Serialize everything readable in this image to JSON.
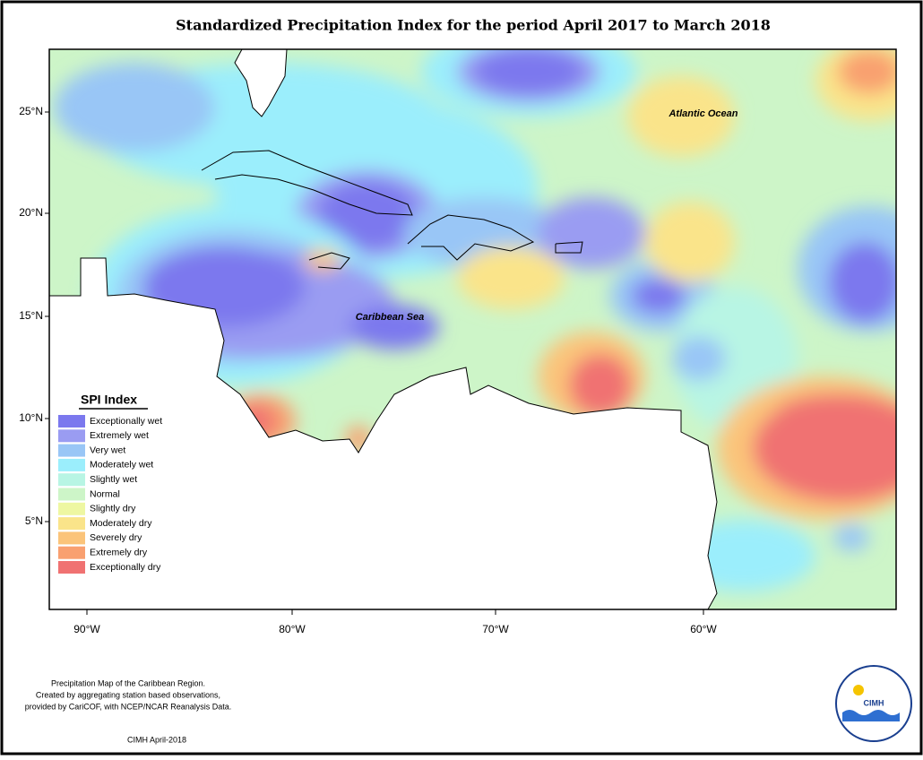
{
  "title": "Standardized Precipitation Index for the period April 2017 to March 2018",
  "map": {
    "lat_ticks": [
      "25°N",
      "20°N",
      "15°N",
      "10°N",
      "5°N"
    ],
    "lon_ticks": [
      "90°W",
      "80°W",
      "70°W",
      "60°W"
    ],
    "labels": [
      "Atlantic Ocean",
      "Caribbean Sea"
    ]
  },
  "legend": {
    "title": "SPI Index",
    "items": [
      {
        "label": "Exceptionally wet",
        "color": "#7b78ee"
      },
      {
        "label": "Extremely wet",
        "color": "#9a9cf2"
      },
      {
        "label": "Very wet",
        "color": "#99c6f6"
      },
      {
        "label": "Moderately wet",
        "color": "#9beefc"
      },
      {
        "label": "Slightly wet",
        "color": "#b8f5e4"
      },
      {
        "label": "Normal",
        "color": "#cdf5c8"
      },
      {
        "label": "Slightly dry",
        "color": "#eef7a2"
      },
      {
        "label": "Moderately dry",
        "color": "#fae48a"
      },
      {
        "label": "Severely dry",
        "color": "#fbc47a"
      },
      {
        "label": "Extremely dry",
        "color": "#f9a070"
      },
      {
        "label": "Exceptionally dry",
        "color": "#f07272"
      }
    ]
  },
  "footer": {
    "notes": [
      "Precipitation Map of the Caribbean Region.",
      "Created by aggregating station based observations,",
      "provided by CariCOF, with NCEP/NCAR Reanalysis Data."
    ],
    "credit": "CIMH April-2018",
    "logo": "CIMH"
  }
}
